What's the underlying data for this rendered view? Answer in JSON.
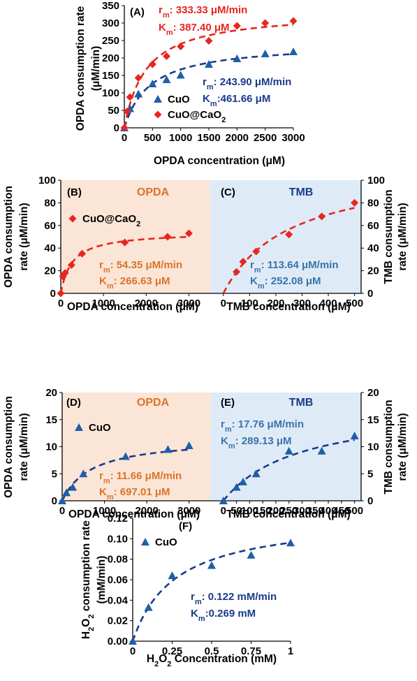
{
  "colors": {
    "cuo": "#1f5fa8",
    "cuo_cao2": "#e8251f",
    "dark_blue": "#1a3b8a",
    "orange_text": "#d9742b",
    "tmb_text": "#3b73a8",
    "opda_bg": "#fbe5d6",
    "tmb_bg": "#deebf7"
  },
  "chart_data": [
    {
      "id": "A",
      "type": "scatter",
      "panel_label": "(A)",
      "xlabel": "OPDA concentration (μM)",
      "ylabel_lines": [
        "OPDA consumption rate",
        "(μM/min)"
      ],
      "xlim": [
        0,
        3000
      ],
      "ylim": [
        0,
        350
      ],
      "xticks": [
        0,
        500,
        1000,
        1500,
        2000,
        2500,
        3000
      ],
      "yticks": [
        0,
        50,
        100,
        150,
        200,
        250,
        300,
        350
      ],
      "series": [
        {
          "name": "CuO",
          "marker": "triangle",
          "color": "#1f5fa8",
          "fit_color": "#1a3b8a",
          "rm": 243.9,
          "km": 461.66,
          "x": [
            0,
            100,
            250,
            500,
            750,
            1000,
            1500,
            2000,
            2500,
            3000
          ],
          "y": [
            0,
            55,
            97,
            126,
            138,
            151,
            182,
            198,
            212,
            218
          ]
        },
        {
          "name": "CuO@CaO2",
          "marker": "diamond",
          "color": "#e8251f",
          "fit_color": "#e8251f",
          "rm": 333.33,
          "km": 387.4,
          "x": [
            0,
            50,
            100,
            250,
            500,
            750,
            1000,
            1500,
            2000,
            2500,
            3000
          ],
          "y": [
            0,
            47,
            88,
            143,
            182,
            205,
            233,
            249,
            292,
            300,
            306
          ]
        }
      ],
      "legend": [
        {
          "text": "CuO",
          "sub": ""
        },
        {
          "text": "CuO@CaO",
          "sub": "2"
        }
      ],
      "annotations": [
        {
          "parts": [
            [
              "r",
              ""
            ],
            [
              "m",
              "sub"
            ],
            [
              ": 333.33 μM/min",
              ""
            ]
          ],
          "color": "#e8251f"
        },
        {
          "parts": [
            [
              "K",
              ""
            ],
            [
              "m",
              "sub"
            ],
            [
              ": 387.40 μM",
              ""
            ]
          ],
          "color": "#e8251f"
        },
        {
          "parts": [
            [
              "r",
              ""
            ],
            [
              "m",
              "sub"
            ],
            [
              ": 243.90 μM/min",
              ""
            ]
          ],
          "color": "#1a3b8a"
        },
        {
          "parts": [
            [
              "K",
              ""
            ],
            [
              "m",
              "sub"
            ],
            [
              ":461.66 μM",
              ""
            ]
          ],
          "color": "#1a3b8a"
        }
      ]
    },
    {
      "id": "B",
      "type": "scatter",
      "panel_label": "(B)",
      "region_label": "OPDA",
      "xlabel": "OPDA concentration (μM)",
      "ylabel_lines": [
        "OPDA consumption",
        "rate (μM/min)"
      ],
      "xlim": [
        0,
        3500
      ],
      "ylim": [
        0,
        100
      ],
      "xticks": [
        0,
        1000,
        2000,
        3000
      ],
      "yticks": [
        0,
        20,
        40,
        60,
        80,
        100
      ],
      "series": [
        {
          "name": "CuO@CaO2",
          "marker": "diamond",
          "color": "#e8251f",
          "fit_color": "#e8251f",
          "rm": 54.35,
          "km": 266.63,
          "x": [
            0,
            50,
            100,
            250,
            500,
            1500,
            2500,
            3000
          ],
          "y": [
            0,
            15,
            18,
            25,
            35,
            45,
            50,
            53
          ]
        }
      ],
      "legend": [
        {
          "text": "CuO@CaO",
          "sub": "2"
        }
      ],
      "annotations": [
        {
          "parts": [
            [
              "r",
              ""
            ],
            [
              "m",
              "sub"
            ],
            [
              ": 54.35 μM/min",
              ""
            ]
          ],
          "color": "#d9742b"
        },
        {
          "parts": [
            [
              "K",
              ""
            ],
            [
              "m",
              "sub"
            ],
            [
              ": 266.63 μM",
              ""
            ]
          ],
          "color": "#d9742b"
        }
      ]
    },
    {
      "id": "C",
      "type": "scatter",
      "panel_label": "(C)",
      "region_label": "TMB",
      "xlabel": "TMB concentration (μM)",
      "ylabel_lines": [
        "TMB consumption",
        "rate (μM/min)"
      ],
      "xlim": [
        -50,
        525
      ],
      "ylim": [
        0,
        100
      ],
      "xticks": [
        0,
        100,
        200,
        300,
        400,
        500
      ],
      "yticks": [
        0,
        20,
        40,
        60,
        80,
        100
      ],
      "series": [
        {
          "name": "CuO@CaO2",
          "marker": "diamond",
          "color": "#e8251f",
          "fit_color": "#e8251f",
          "rm": 113.64,
          "km": 252.08,
          "x": [
            50,
            75,
            125,
            250,
            375,
            500
          ],
          "y": [
            19,
            28,
            37,
            52,
            68,
            80
          ]
        }
      ],
      "legend": [],
      "annotations": [
        {
          "parts": [
            [
              "r",
              ""
            ],
            [
              "m",
              "sub"
            ],
            [
              ": 113.64 μM/min",
              ""
            ]
          ],
          "color": "#3b73a8"
        },
        {
          "parts": [
            [
              "K",
              ""
            ],
            [
              "m",
              "sub"
            ],
            [
              ": 252.08 μM",
              ""
            ]
          ],
          "color": "#3b73a8"
        }
      ]
    },
    {
      "id": "D",
      "type": "scatter",
      "panel_label": "(D)",
      "region_label": "OPDA",
      "xlabel": "OPDA concentration (μM)",
      "ylabel_lines": [
        "OPDA consumption",
        "rate (μM/min)"
      ],
      "xlim": [
        0,
        3500
      ],
      "ylim": [
        0,
        20
      ],
      "xticks": [
        0,
        1000,
        2000,
        3000
      ],
      "yticks": [
        0,
        5,
        10,
        15,
        20
      ],
      "series": [
        {
          "name": "CuO",
          "marker": "triangle",
          "color": "#1f5fa8",
          "fit_color": "#1a3b8a",
          "rm": 11.66,
          "km": 697.01,
          "x": [
            0,
            100,
            250,
            500,
            1500,
            2500,
            3000
          ],
          "y": [
            0,
            1.5,
            2.5,
            5,
            8.2,
            9.5,
            10.2
          ]
        }
      ],
      "legend": [
        {
          "text": "CuO",
          "sub": ""
        }
      ],
      "annotations": [
        {
          "parts": [
            [
              "r",
              ""
            ],
            [
              "m",
              "sub"
            ],
            [
              ": 11.66 μM/min",
              ""
            ]
          ],
          "color": "#d9742b"
        },
        {
          "parts": [
            [
              "K",
              ""
            ],
            [
              "m",
              "sub"
            ],
            [
              ": 697.01 μM",
              ""
            ]
          ],
          "color": "#d9742b"
        }
      ]
    },
    {
      "id": "E",
      "type": "scatter",
      "panel_label": "(E)",
      "region_label": "TMB",
      "xlabel": "TMB concentration (μM)",
      "ylabel_lines": [
        "TMB consumption",
        "rate (μM/min)"
      ],
      "xlim": [
        -50,
        525
      ],
      "ylim": [
        0,
        20
      ],
      "xticks": [
        0,
        50,
        100,
        150,
        200,
        250,
        300,
        350,
        400,
        450,
        500
      ],
      "yticks": [
        0,
        5,
        10,
        15,
        20
      ],
      "series": [
        {
          "name": "CuO",
          "marker": "triangle",
          "color": "#1f5fa8",
          "fit_color": "#1a3b8a",
          "rm": 17.76,
          "km": 289.13,
          "x": [
            0,
            50,
            75,
            125,
            250,
            375,
            500
          ],
          "y": [
            0,
            2.5,
            3.5,
            5,
            9.2,
            9.2,
            12
          ]
        }
      ],
      "legend": [],
      "annotations": [
        {
          "parts": [
            [
              "r",
              ""
            ],
            [
              "m",
              "sub"
            ],
            [
              ": 17.76 μM/min",
              ""
            ]
          ],
          "color": "#3b73a8"
        },
        {
          "parts": [
            [
              "K",
              ""
            ],
            [
              "m",
              "sub"
            ],
            [
              ": 289.13 μM",
              ""
            ]
          ],
          "color": "#3b73a8"
        }
      ]
    },
    {
      "id": "F",
      "type": "scatter",
      "panel_label": "(F)",
      "xlabel_parts": [
        [
          "H",
          ""
        ],
        [
          "2",
          "sub"
        ],
        [
          "O",
          ""
        ],
        [
          "2",
          "sub"
        ],
        [
          " Concentration (mM)",
          ""
        ]
      ],
      "ylabel_lines_parts": [
        [
          [
            "H",
            ""
          ],
          [
            "2",
            "sub"
          ],
          [
            "O",
            ""
          ],
          [
            "2",
            "sub"
          ],
          [
            " consumption rate",
            ""
          ]
        ],
        [
          [
            "(mM/min)",
            ""
          ]
        ]
      ],
      "xlim": [
        0,
        1
      ],
      "ylim": [
        0,
        0.12
      ],
      "xticks": [
        0,
        0.25,
        0.5,
        0.75,
        1
      ],
      "xtick_labels": [
        "0",
        "0.25",
        "0.5",
        "0.75",
        "1"
      ],
      "yticks": [
        0,
        0.02,
        0.04,
        0.06,
        0.08,
        0.1,
        0.12
      ],
      "ytick_labels": [
        "0.00",
        "0.02",
        "0.04",
        "0.06",
        "0.08",
        "0.10",
        "0.12"
      ],
      "series": [
        {
          "name": "CuO",
          "marker": "triangle",
          "color": "#1f5fa8",
          "fit_color": "#1a3b8a",
          "rm": 0.122,
          "km": 0.269,
          "x": [
            0,
            0.1,
            0.25,
            0.5,
            0.75,
            1
          ],
          "y": [
            0,
            0.033,
            0.064,
            0.074,
            0.084,
            0.096
          ]
        }
      ],
      "legend": [
        {
          "text": "CuO",
          "sub": ""
        }
      ],
      "annotations": [
        {
          "parts": [
            [
              "r",
              ""
            ],
            [
              "m",
              "sub"
            ],
            [
              ": 0.122 mM/min",
              ""
            ]
          ],
          "color": "#1a3b8a"
        },
        {
          "parts": [
            [
              "K",
              ""
            ],
            [
              "m",
              "sub"
            ],
            [
              ":0.269 mM",
              ""
            ]
          ],
          "color": "#1a3b8a"
        }
      ]
    }
  ]
}
